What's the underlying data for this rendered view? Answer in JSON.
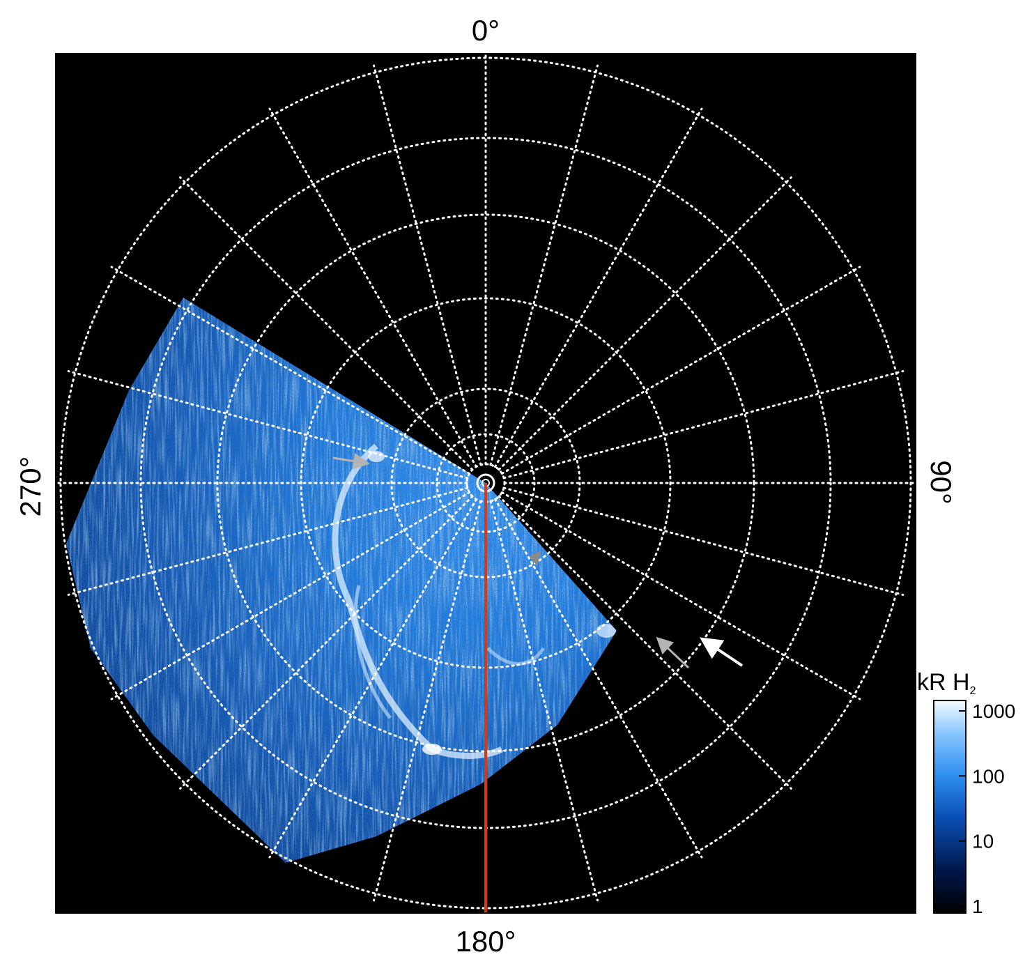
{
  "labels": {
    "top": "0°",
    "bottom": "180°",
    "left": "270°",
    "right": "90°"
  },
  "colorbar": {
    "title": "kR H",
    "title_subscript": "2",
    "scale": "log",
    "ticks": [
      "1000",
      "100",
      "10",
      "1"
    ]
  },
  "colors": {
    "background": "#000000",
    "grid": "#ffffff",
    "meridian_marker": "#d63a12",
    "arrow_white": "#ffffff",
    "arrow_grey": "#b4b4b4",
    "colormap": [
      "#000000",
      "#00184a",
      "#0a4fb5",
      "#2f8ff0",
      "#8cc8ff",
      "#f4fbff"
    ]
  },
  "annotations": {
    "meridian_line_longitude": "180°",
    "arrows": [
      {
        "name": "grey-arrow-left",
        "color": "grey"
      },
      {
        "name": "grey-arrow-edge",
        "color": "grey"
      },
      {
        "name": "grey-arrow-lower-right",
        "color": "grey"
      },
      {
        "name": "white-arrow-lower-right",
        "color": "white"
      }
    ]
  }
}
